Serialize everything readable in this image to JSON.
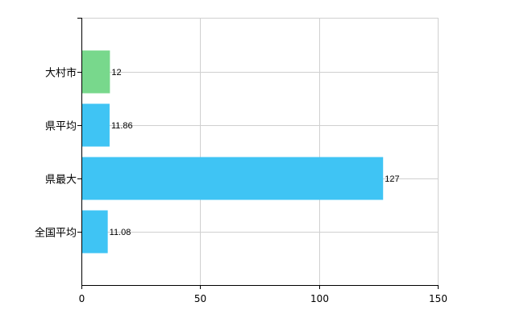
{
  "chart_data": {
    "type": "bar",
    "orientation": "horizontal",
    "categories": [
      "大村市",
      "県平均",
      "県最大",
      "全国平均"
    ],
    "values": [
      12,
      11.86,
      127,
      11.08
    ],
    "value_labels": [
      "12",
      "11.86",
      "127",
      "11.08"
    ],
    "bar_colors": [
      "#78d88c",
      "#3fc4f4",
      "#3fc4f4",
      "#3fc4f4"
    ],
    "xlim": [
      0,
      150
    ],
    "xticks": [
      0,
      50,
      100,
      150
    ],
    "xtick_labels": [
      "0",
      "50",
      "100",
      "150"
    ],
    "grid": true,
    "grid_color": "#d0d0d0",
    "axis_color": "#000000",
    "title": "",
    "xlabel": "",
    "ylabel": ""
  }
}
